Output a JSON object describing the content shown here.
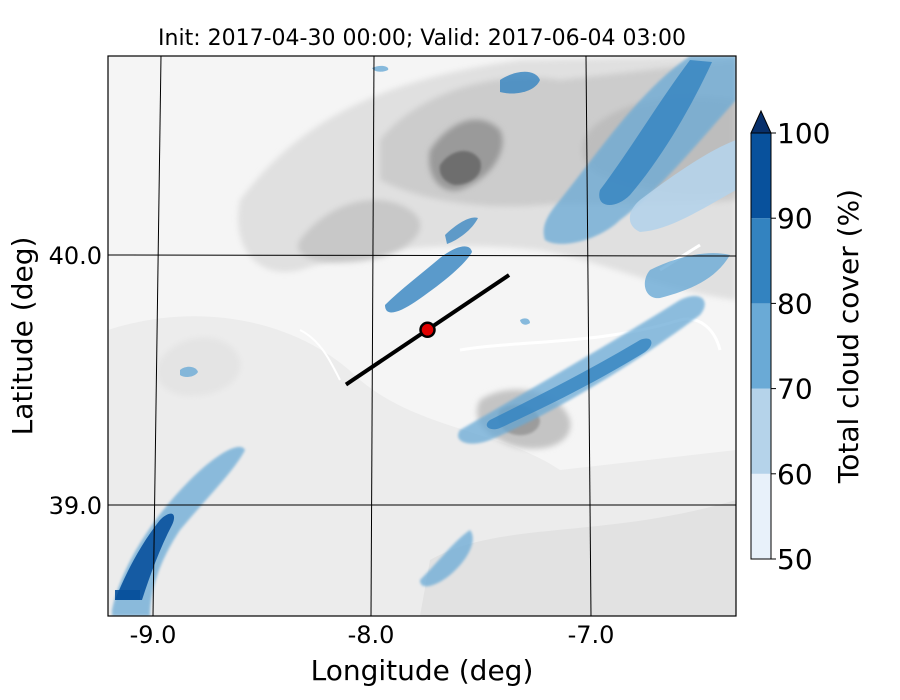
{
  "title": "Init: 2017-04-30 00:00; Valid: 2017-06-04 03:00",
  "map": {
    "xlabel": "Longitude (deg)",
    "ylabel": "Latitude (deg)",
    "lon_ticks": [
      "-9.0",
      "-8.0",
      "-7.0"
    ],
    "lat_ticks": [
      "40.0",
      "39.0"
    ],
    "lon_range": [
      -9.2,
      -6.35
    ],
    "lat_range": [
      38.55,
      40.8
    ],
    "cross_section": {
      "start": [
        -8.12,
        39.48
      ],
      "end": [
        -7.38,
        39.92
      ]
    },
    "point": {
      "lon": -7.75,
      "lat": 39.7,
      "color": "#e00000"
    }
  },
  "colorbar": {
    "label": "Total cloud cover (%)",
    "ticks": [
      "50",
      "60",
      "70",
      "80",
      "90",
      "100"
    ],
    "levels": [
      50,
      60,
      70,
      80,
      90,
      100
    ],
    "colors": [
      "#e8f1fa",
      "#b5d3ea",
      "#6aaad6",
      "#3383c0",
      "#08519c",
      "#08306b"
    ],
    "extend": "max"
  },
  "terrain_colors": [
    "#f4f4f4",
    "#e8e8e8",
    "#d6d6d6",
    "#b8b8b8",
    "#8a8a8a",
    "#555555"
  ]
}
